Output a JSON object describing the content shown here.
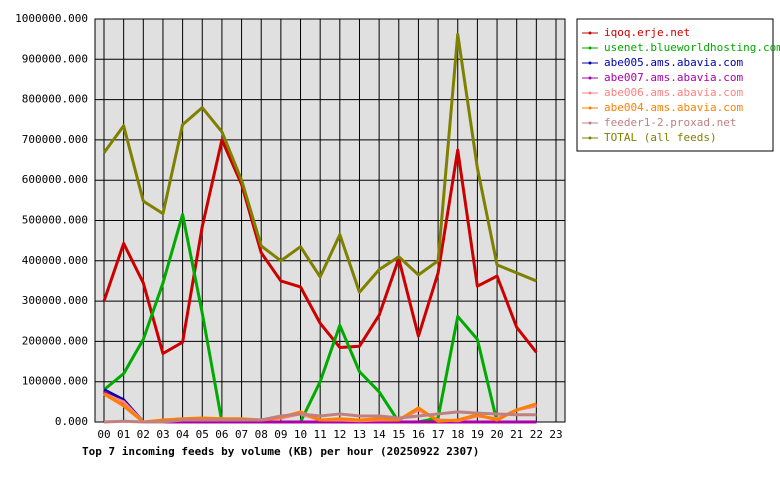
{
  "chart_data": {
    "type": "line",
    "title": "Top 7 incoming feeds by volume (KB) per hour (20250922 2307)",
    "categories": [
      "00",
      "01",
      "02",
      "03",
      "04",
      "05",
      "06",
      "07",
      "08",
      "09",
      "10",
      "11",
      "12",
      "13",
      "14",
      "15",
      "16",
      "17",
      "18",
      "19",
      "20",
      "21",
      "22",
      "23"
    ],
    "ylim": [
      0,
      1000000
    ],
    "yticks": [
      {
        "value": 0,
        "label": "0.000"
      },
      {
        "value": 100000,
        "label": "100000.000"
      },
      {
        "value": 200000,
        "label": "200000.000"
      },
      {
        "value": 300000,
        "label": "300000.000"
      },
      {
        "value": 400000,
        "label": "400000.000"
      },
      {
        "value": 500000,
        "label": "500000.000"
      },
      {
        "value": 600000,
        "label": "600000.000"
      },
      {
        "value": 700000,
        "label": "700000.000"
      },
      {
        "value": 800000,
        "label": "800000.000"
      },
      {
        "value": 900000,
        "label": "900000.000"
      },
      {
        "value": 1000000,
        "label": "1000000.000"
      }
    ],
    "grid": true,
    "legend": "right",
    "series": [
      {
        "name": "iqoq.erje.net",
        "color": "#cc0000",
        "values": [
          300000,
          443000,
          345000,
          170000,
          198000,
          485000,
          700000,
          590000,
          420000,
          350000,
          335000,
          245000,
          185000,
          188000,
          265000,
          405000,
          213000,
          370000,
          675000,
          337000,
          362000,
          235000,
          173000,
          null
        ]
      },
      {
        "name": "usenet.blueworldhosting.com",
        "color": "#00aa00",
        "values": [
          80000,
          120000,
          205000,
          345000,
          515000,
          270000,
          0,
          0,
          0,
          0,
          0,
          100000,
          240000,
          125000,
          75000,
          0,
          0,
          10000,
          262000,
          205000,
          0,
          0,
          0,
          null
        ]
      },
      {
        "name": "abe005.ams.abavia.com",
        "color": "#0000aa",
        "values": [
          80000,
          55000,
          0,
          0,
          0,
          0,
          0,
          0,
          0,
          0,
          0,
          0,
          0,
          0,
          0,
          0,
          0,
          0,
          0,
          0,
          0,
          0,
          0,
          null
        ]
      },
      {
        "name": "abe007.ams.abavia.com",
        "color": "#aa00aa",
        "values": [
          75000,
          45000,
          0,
          0,
          0,
          0,
          0,
          0,
          0,
          0,
          0,
          0,
          0,
          0,
          0,
          0,
          0,
          0,
          0,
          0,
          0,
          0,
          0,
          null
        ]
      },
      {
        "name": "abe006.ams.abavia.com",
        "color": "#ff8080",
        "values": [
          70000,
          50000,
          0,
          2000,
          5000,
          8000,
          8000,
          6000,
          5000,
          10000,
          20000,
          5000,
          5000,
          3000,
          5000,
          5000,
          30000,
          5000,
          3000,
          15000,
          8000,
          30000,
          40000,
          null
        ]
      },
      {
        "name": "abe004.ams.abavia.com",
        "color": "#ff8000",
        "values": [
          70000,
          40000,
          0,
          5000,
          8000,
          10000,
          8000,
          8000,
          5000,
          12000,
          25000,
          5000,
          8000,
          5000,
          8000,
          5000,
          35000,
          2000,
          5000,
          18000,
          5000,
          30000,
          45000,
          null
        ]
      },
      {
        "name": "feeder1-2.proxad.net",
        "color": "#c08080",
        "values": [
          0,
          2000,
          0,
          0,
          5000,
          5000,
          5000,
          5000,
          5000,
          15000,
          20000,
          15000,
          20000,
          15000,
          15000,
          10000,
          15000,
          20000,
          25000,
          22000,
          20000,
          18000,
          18000,
          null
        ]
      },
      {
        "name": "TOTAL (all feeds)",
        "color": "#808000",
        "values": [
          668000,
          735000,
          548000,
          517000,
          738000,
          780000,
          720000,
          600000,
          437000,
          400000,
          435000,
          360000,
          465000,
          322000,
          378000,
          410000,
          365000,
          400000,
          962000,
          630000,
          390000,
          370000,
          350000,
          null
        ]
      }
    ]
  }
}
